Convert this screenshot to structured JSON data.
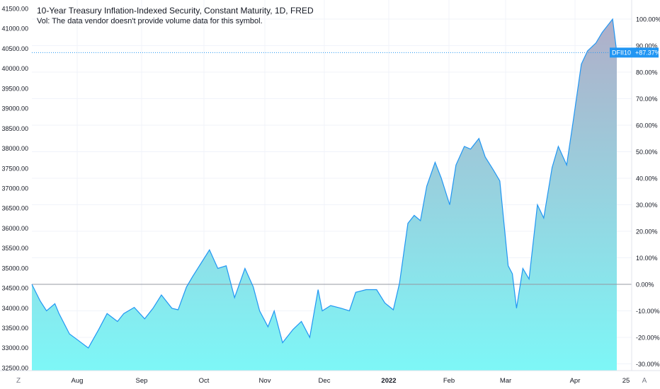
{
  "header": {
    "title": "10-Year Treasury Inflation-Indexed Security, Constant Maturity, 1D, FRED",
    "volume_note": "Vol: The data vendor doesn't provide volume data for this symbol."
  },
  "corner": {
    "left_label": "Z",
    "right_label": "A"
  },
  "price_tag": {
    "symbol": "DFII10",
    "value": "+87.37%"
  },
  "colors": {
    "line": "#2196f3",
    "fill_top": "#b0aec8",
    "fill_bottom": "#7df7f7",
    "grid": "#f0f3fa",
    "baseline": "#9598a1",
    "tag": "#2196f3"
  },
  "chart_data": {
    "type": "area",
    "ylabel_left_ticks": [
      "41500.00",
      "41000.00",
      "40500.00",
      "40000.00",
      "39500.00",
      "39000.00",
      "38500.00",
      "38000.00",
      "37500.00",
      "37000.00",
      "36500.00",
      "36000.00",
      "35500.00",
      "35000.00",
      "34500.00",
      "34000.00",
      "33500.00",
      "33000.00",
      "32500.00"
    ],
    "ylabel_right_ticks": [
      "100.00%",
      "90.00%",
      "80.00%",
      "70.00%",
      "60.00%",
      "50.00%",
      "40.00%",
      "30.00%",
      "20.00%",
      "10.00%",
      "0.00%",
      "-10.00%",
      "-20.00%",
      "-30.00%"
    ],
    "x_ticks": [
      "Aug",
      "Sep",
      "Oct",
      "Nov",
      "Dec",
      "2022",
      "Feb",
      "Mar",
      "Apr",
      "25"
    ],
    "y_unit": "percent change from baseline",
    "ylim_percent": [
      -31.6,
      101.6
    ],
    "current_percent": 87.37,
    "x": [
      "2021-07-15",
      "2021-07-19",
      "2021-07-22",
      "2021-07-26",
      "2021-07-28",
      "2021-08-02",
      "2021-08-06",
      "2021-08-11",
      "2021-08-16",
      "2021-08-20",
      "2021-08-25",
      "2021-08-28",
      "2021-09-02",
      "2021-09-07",
      "2021-09-11",
      "2021-09-15",
      "2021-09-20",
      "2021-09-23",
      "2021-09-27",
      "2021-09-30",
      "2021-10-04",
      "2021-10-08",
      "2021-10-12",
      "2021-10-16",
      "2021-10-20",
      "2021-10-25",
      "2021-10-29",
      "2021-11-01",
      "2021-11-05",
      "2021-11-08",
      "2021-11-12",
      "2021-11-17",
      "2021-11-21",
      "2021-11-25",
      "2021-11-29",
      "2021-12-01",
      "2021-12-05",
      "2021-12-10",
      "2021-12-14",
      "2021-12-17",
      "2021-12-22",
      "2021-12-27",
      "2021-12-31",
      "2022-01-04",
      "2022-01-07",
      "2022-01-11",
      "2022-01-14",
      "2022-01-17",
      "2022-01-20",
      "2022-01-24",
      "2022-01-27",
      "2022-01-31",
      "2022-02-03",
      "2022-02-07",
      "2022-02-10",
      "2022-02-14",
      "2022-02-17",
      "2022-02-21",
      "2022-02-24",
      "2022-02-28",
      "2022-03-02",
      "2022-03-04",
      "2022-03-07",
      "2022-03-10",
      "2022-03-14",
      "2022-03-17",
      "2022-03-21",
      "2022-03-24",
      "2022-03-28",
      "2022-03-31",
      "2022-04-04",
      "2022-04-07",
      "2022-04-11",
      "2022-04-14",
      "2022-04-19",
      "2022-04-21"
    ],
    "values": [
      0.0,
      -6.3,
      -10.0,
      -7.3,
      -11.0,
      -18.7,
      -21.0,
      -24.0,
      -17.0,
      -11.0,
      -14.0,
      -11.0,
      -8.7,
      -13.0,
      -9.0,
      -4.0,
      -9.0,
      -9.6,
      -1.0,
      3.0,
      8.0,
      13.0,
      6.0,
      7.0,
      -5.0,
      6.0,
      -1.0,
      -10.0,
      -16.0,
      -10.0,
      -22.0,
      -17.0,
      -14.0,
      -20.0,
      -2.0,
      -10.0,
      -8.0,
      -9.0,
      -10.0,
      -3.0,
      -2.0,
      -2.0,
      -7.0,
      -9.6,
      0.5,
      23.0,
      26.0,
      24.0,
      37.0,
      46.0,
      40.0,
      30.0,
      45.0,
      52.0,
      51.0,
      55.0,
      48.0,
      43.0,
      39.0,
      7.0,
      4.0,
      -9.0,
      6.0,
      2.0,
      30.0,
      25.0,
      44.0,
      52.0,
      45.0,
      61.0,
      83.0,
      88.0,
      91.0,
      95.0,
      100.0,
      87.37
    ]
  }
}
